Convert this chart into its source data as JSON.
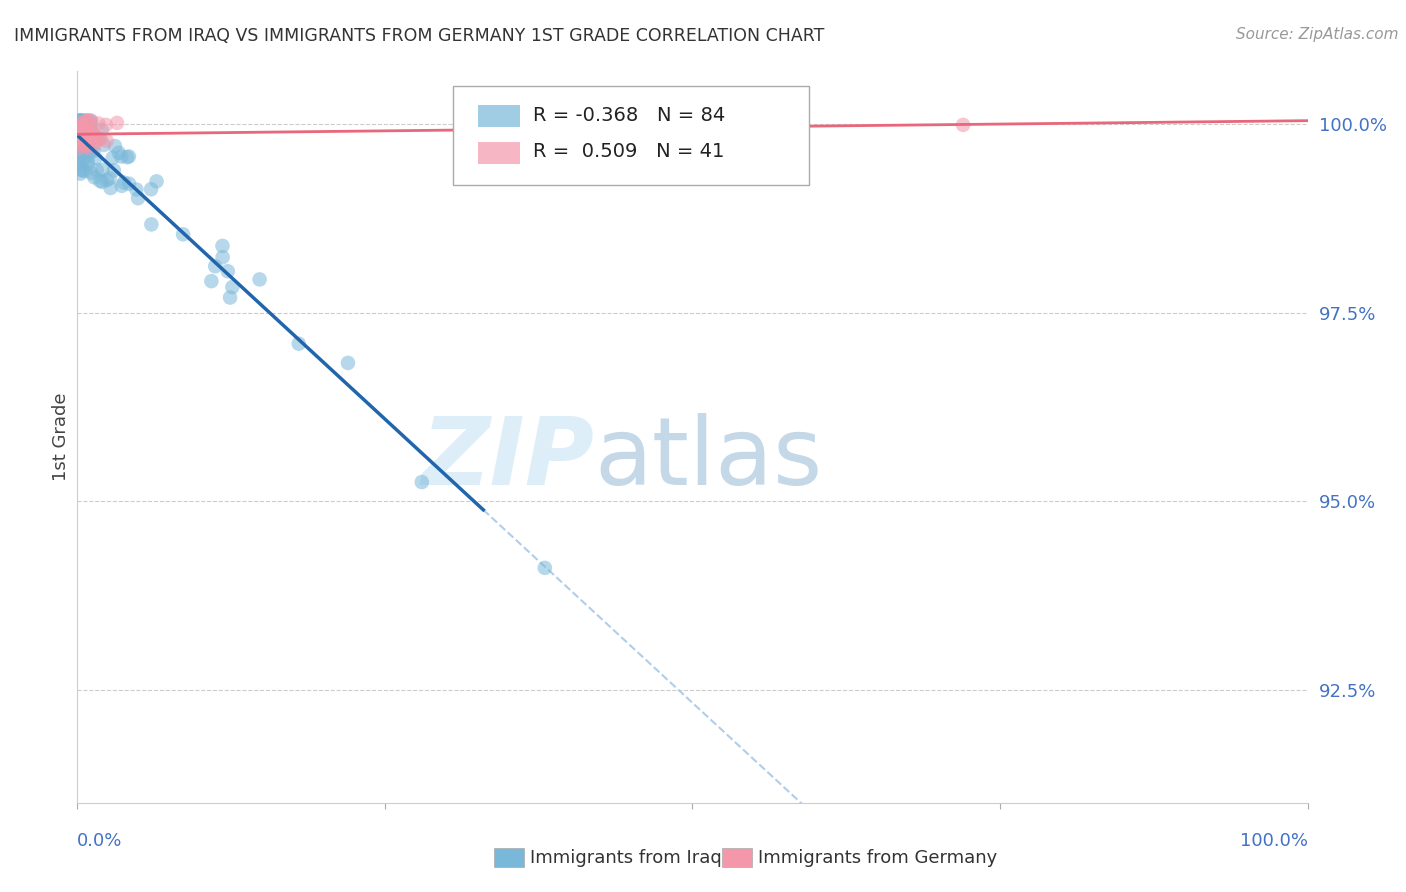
{
  "title": "IMMIGRANTS FROM IRAQ VS IMMIGRANTS FROM GERMANY 1ST GRADE CORRELATION CHART",
  "source": "Source: ZipAtlas.com",
  "ylabel": "1st Grade",
  "ylabel_right_labels": [
    "100.0%",
    "97.5%",
    "95.0%",
    "92.5%"
  ],
  "ylabel_right_values": [
    1.0,
    0.975,
    0.95,
    0.925
  ],
  "legend_iraq": "Immigrants from Iraq",
  "legend_germany": "Immigrants from Germany",
  "R_iraq": -0.368,
  "N_iraq": 84,
  "R_germany": 0.509,
  "N_germany": 41,
  "iraq_color": "#7ab8d9",
  "germany_color": "#f497aa",
  "iraq_line_color": "#2166ac",
  "germany_line_color": "#e8677a",
  "dashed_line_color": "#a8c8e8",
  "watermark_zip_color": "#ddeef8",
  "watermark_atlas_color": "#c5d8e8",
  "background_color": "#ffffff",
  "grid_color": "#cccccc",
  "axis_label_color": "#4472c4",
  "title_color": "#333333",
  "xlim": [
    0.0,
    1.0
  ],
  "ylim": [
    0.91,
    1.007
  ]
}
